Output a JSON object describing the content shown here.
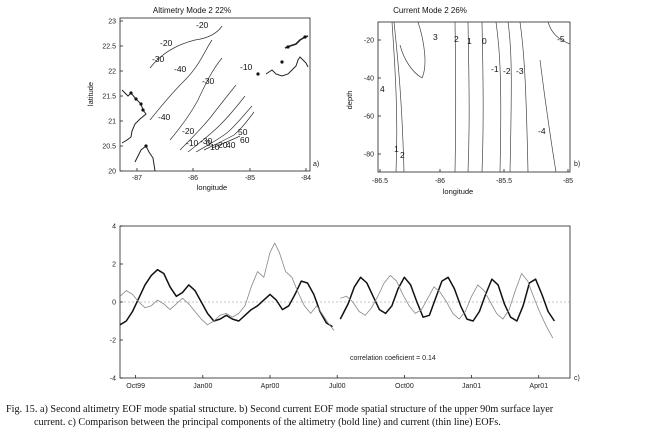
{
  "panel_a": {
    "title": "Altimetry Mode 2  22%",
    "xlabel": "longitude",
    "ylabel": "latitude",
    "tag": "a)",
    "xticks": [
      "-87",
      "-86",
      "-85",
      "-84"
    ],
    "yticks": [
      "23",
      "22.5",
      "22",
      "21.5",
      "21",
      "20.5",
      "20"
    ],
    "contour_labels": [
      "-20",
      "-30",
      "-40",
      "-20",
      "-30",
      "-10",
      "-40",
      "-20",
      "-10",
      "-30",
      "0",
      "50",
      "60",
      "10",
      "20",
      "40"
    ]
  },
  "panel_b": {
    "title": "Current  Mode 2  26%",
    "xlabel": "longitude",
    "ylabel": "depth",
    "tag": "b)",
    "xticks": [
      "-86.5",
      "-86",
      "-85.5",
      "-85"
    ],
    "yticks": [
      "-20",
      "-40",
      "-60",
      "-80"
    ],
    "contour_labels": [
      "3",
      "2",
      "1",
      "0",
      "-1",
      "-2",
      "-3",
      "-4",
      "-5",
      "1",
      "2",
      "4"
    ]
  },
  "chart_data": {
    "type": "line",
    "tag": "c)",
    "annotation": "correlation coeficient = 0.14",
    "xticks": [
      "Oct99",
      "Jan00",
      "Apr00",
      "Jul00",
      "Oct00",
      "Jan01",
      "Apr01"
    ],
    "ylim": [
      -4,
      4
    ],
    "yticks": [
      "4",
      "2",
      "0",
      "-2",
      "-4"
    ],
    "series": [
      {
        "style": "bold",
        "segments": [
          [
            [
              0,
              -1.2
            ],
            [
              0.2,
              -1.0
            ],
            [
              0.4,
              -0.5
            ],
            [
              0.6,
              0.2
            ],
            [
              0.8,
              0.9
            ],
            [
              1.0,
              1.4
            ],
            [
              1.2,
              1.7
            ],
            [
              1.4,
              1.5
            ],
            [
              1.6,
              0.8
            ],
            [
              1.8,
              0.3
            ],
            [
              2.0,
              0.5
            ],
            [
              2.2,
              0.9
            ],
            [
              2.4,
              0.6
            ],
            [
              2.6,
              0.0
            ],
            [
              2.8,
              -0.6
            ],
            [
              3.0,
              -1.0
            ],
            [
              3.2,
              -0.9
            ],
            [
              3.4,
              -0.7
            ],
            [
              3.6,
              -0.9
            ],
            [
              3.8,
              -1.0
            ],
            [
              4.0,
              -0.7
            ],
            [
              4.2,
              -0.4
            ],
            [
              4.4,
              -0.2
            ],
            [
              4.6,
              0.1
            ],
            [
              4.8,
              0.4
            ],
            [
              5.0,
              0.1
            ],
            [
              5.2,
              -0.4
            ],
            [
              5.4,
              -0.2
            ],
            [
              5.6,
              0.4
            ],
            [
              5.8,
              1.1
            ],
            [
              6.0,
              1.0
            ],
            [
              6.2,
              0.4
            ],
            [
              6.4,
              -0.5
            ],
            [
              6.6,
              -1.1
            ],
            [
              6.8,
              -1.3
            ]
          ],
          [
            [
              7.05,
              -0.9
            ],
            [
              7.3,
              -0.1
            ],
            [
              7.5,
              0.8
            ],
            [
              7.7,
              1.3
            ],
            [
              7.9,
              1.0
            ],
            [
              8.1,
              0.3
            ],
            [
              8.3,
              -0.4
            ],
            [
              8.5,
              -0.6
            ],
            [
              8.7,
              -0.2
            ],
            [
              8.9,
              0.7
            ],
            [
              9.1,
              1.3
            ],
            [
              9.3,
              0.9
            ],
            [
              9.5,
              0.0
            ],
            [
              9.7,
              -0.8
            ],
            [
              9.9,
              -0.7
            ],
            [
              10.1,
              0.2
            ],
            [
              10.3,
              1.1
            ],
            [
              10.5,
              1.3
            ],
            [
              10.7,
              0.7
            ],
            [
              10.9,
              -0.2
            ],
            [
              11.1,
              -0.9
            ],
            [
              11.3,
              -1.0
            ],
            [
              11.5,
              -0.5
            ],
            [
              11.7,
              0.4
            ],
            [
              11.9,
              1.2
            ],
            [
              12.1,
              0.9
            ],
            [
              12.3,
              -0.1
            ],
            [
              12.5,
              -0.8
            ],
            [
              12.7,
              -1.0
            ],
            [
              12.9,
              -0.2
            ],
            [
              13.1,
              1.0
            ],
            [
              13.3,
              1.2
            ],
            [
              13.5,
              0.4
            ],
            [
              13.7,
              -0.5
            ],
            [
              13.9,
              -1.0
            ]
          ]
        ]
      },
      {
        "style": "thin",
        "segments": [
          [
            [
              0,
              0.3
            ],
            [
              0.2,
              0.6
            ],
            [
              0.4,
              0.4
            ],
            [
              0.6,
              0.0
            ],
            [
              0.8,
              -0.3
            ],
            [
              1.0,
              -0.2
            ],
            [
              1.2,
              0.1
            ],
            [
              1.4,
              -0.1
            ],
            [
              1.6,
              -0.4
            ],
            [
              1.8,
              -0.1
            ],
            [
              2.0,
              0.2
            ],
            [
              2.2,
              -0.1
            ],
            [
              2.4,
              -0.5
            ],
            [
              2.6,
              -0.9
            ],
            [
              2.8,
              -1.2
            ],
            [
              3.0,
              -1.0
            ],
            [
              3.2,
              -0.7
            ],
            [
              3.4,
              -0.6
            ],
            [
              3.6,
              -0.8
            ],
            [
              3.8,
              -0.6
            ],
            [
              4.0,
              -0.2
            ],
            [
              4.2,
              0.8
            ],
            [
              4.4,
              1.6
            ],
            [
              4.6,
              1.3
            ],
            [
              4.8,
              2.6
            ],
            [
              4.95,
              3.1
            ],
            [
              5.1,
              2.6
            ],
            [
              5.3,
              1.6
            ],
            [
              5.5,
              1.3
            ],
            [
              5.7,
              0.5
            ],
            [
              5.9,
              -0.2
            ],
            [
              6.1,
              -0.6
            ],
            [
              6.3,
              -0.2
            ],
            [
              6.5,
              -0.7
            ],
            [
              6.7,
              -1.2
            ],
            [
              6.85,
              -1.5
            ]
          ],
          [
            [
              7.05,
              0.2
            ],
            [
              7.25,
              0.3
            ],
            [
              7.45,
              0.0
            ],
            [
              7.65,
              -0.5
            ],
            [
              7.85,
              -0.7
            ],
            [
              8.05,
              -0.3
            ],
            [
              8.25,
              0.3
            ],
            [
              8.45,
              1.0
            ],
            [
              8.65,
              1.4
            ],
            [
              8.85,
              1.1
            ],
            [
              9.05,
              0.4
            ],
            [
              9.25,
              -0.2
            ],
            [
              9.45,
              -0.6
            ],
            [
              9.65,
              -0.4
            ],
            [
              9.85,
              0.2
            ],
            [
              10.05,
              0.8
            ],
            [
              10.25,
              0.5
            ],
            [
              10.45,
              0.0
            ],
            [
              10.65,
              -0.6
            ],
            [
              10.85,
              -0.9
            ],
            [
              11.05,
              -0.5
            ],
            [
              11.25,
              0.3
            ],
            [
              11.45,
              0.9
            ],
            [
              11.65,
              0.6
            ],
            [
              11.85,
              0.0
            ],
            [
              12.05,
              -0.6
            ],
            [
              12.25,
              -0.9
            ],
            [
              12.45,
              -0.4
            ],
            [
              12.65,
              0.6
            ],
            [
              12.85,
              1.5
            ],
            [
              13.05,
              1.1
            ],
            [
              13.25,
              0.2
            ],
            [
              13.45,
              -0.6
            ],
            [
              13.65,
              -1.3
            ],
            [
              13.85,
              -1.9
            ]
          ]
        ]
      }
    ]
  },
  "caption": {
    "line1": "Fig. 15. a) Second altimetry EOF mode spatial structure. b) Second current EOF mode spatial structure of the upper 90m surface layer",
    "line2": "current. c) Comparison between the principal components of the altimetry (bold line) and current (thin line) EOFs."
  }
}
